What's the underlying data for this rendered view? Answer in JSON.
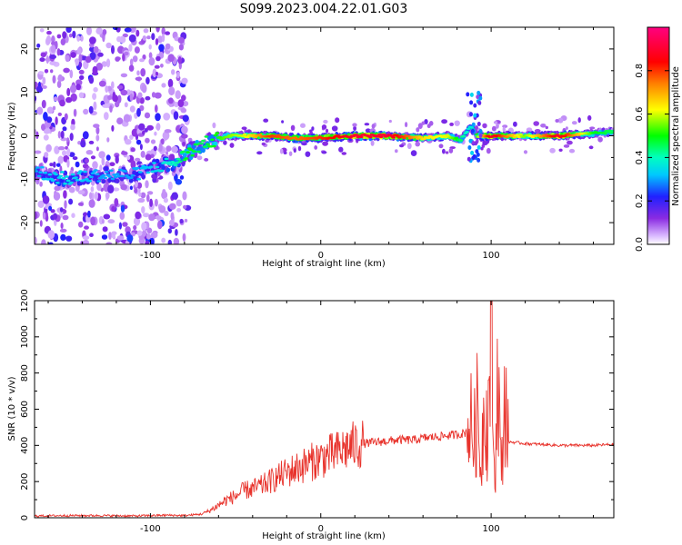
{
  "title": "S099.2023.004.22.01.G03",
  "chart_data": [
    {
      "type": "heatmap",
      "title": "S099.2023.004.22.01.G03",
      "xlabel": "Height of straight line (km)",
      "ylabel": "Frequency (Hz)",
      "xlim": [
        -168,
        172
      ],
      "ylim": [
        -25,
        25
      ],
      "xticks": [
        -100,
        0,
        100
      ],
      "yticks": [
        -20,
        -10,
        0,
        10,
        20
      ],
      "xtick_labels": [
        "-100",
        "0",
        "100"
      ],
      "ytick_labels": [
        "-20",
        "-10",
        "0",
        "10",
        "20"
      ],
      "colorbar": {
        "label": "Normalized spectral amplitude",
        "range": [
          0,
          1
        ],
        "ticks": [
          0.0,
          0.2,
          0.4,
          0.6,
          0.8
        ],
        "tick_labels": [
          "0.0",
          "0.2",
          "0.4",
          "0.6",
          "0.8"
        ],
        "colormap": "rainbow (white-purple-blue-cyan-green-yellow-red-magenta)"
      },
      "ridge": {
        "x": [
          -168,
          -150,
          -130,
          -110,
          -95,
          -85,
          -78,
          -70,
          -62,
          -55,
          -45,
          -30,
          -15,
          0,
          20,
          40,
          60,
          75,
          82,
          88,
          92,
          100,
          120,
          140,
          160,
          172
        ],
        "freq": [
          -8,
          -10,
          -9,
          -9,
          -7,
          -6,
          -4,
          -2,
          -1,
          0,
          0,
          0,
          -0.5,
          -0.5,
          0,
          0,
          -0.5,
          0,
          -1,
          2,
          0,
          0,
          0,
          0,
          0.5,
          1
        ],
        "amplitude": [
          0.3,
          0.35,
          0.3,
          0.3,
          0.35,
          0.4,
          0.5,
          0.45,
          0.5,
          0.55,
          0.6,
          0.8,
          0.75,
          0.8,
          0.9,
          0.9,
          0.65,
          0.6,
          0.45,
          0.35,
          0.55,
          0.9,
          0.55,
          0.9,
          0.5,
          0.45
        ]
      },
      "noise_region_x": [
        -168,
        -78
      ]
    },
    {
      "type": "line",
      "xlabel": "Height of straight line (km)",
      "ylabel": "SNR (10 * v/v)",
      "xlim": [
        -168,
        172
      ],
      "ylim": [
        0,
        1200
      ],
      "xticks": [
        -100,
        0,
        100
      ],
      "yticks": [
        0,
        200,
        400,
        600,
        800,
        1000,
        1200
      ],
      "xtick_labels": [
        "-100",
        "0",
        "100"
      ],
      "ytick_labels": [
        "0",
        "200",
        "400",
        "600",
        "800",
        "1000",
        "1200"
      ],
      "series": [
        {
          "color": "#e8322b",
          "x": [
            -168,
            -150,
            -130,
            -110,
            -90,
            -80,
            -70,
            -65,
            -60,
            -55,
            -50,
            -45,
            -40,
            -35,
            -30,
            -25,
            -20,
            -15,
            -10,
            -5,
            0,
            5,
            10,
            15,
            20,
            25,
            30,
            35,
            40,
            45,
            50,
            55,
            60,
            65,
            70,
            75,
            80,
            85,
            88,
            90,
            92,
            94,
            96,
            98,
            100,
            102,
            104,
            106,
            108,
            110,
            120,
            130,
            140,
            150,
            160,
            172
          ],
          "values": [
            10,
            12,
            12,
            10,
            14,
            12,
            20,
            40,
            70,
            100,
            120,
            150,
            160,
            175,
            200,
            225,
            250,
            270,
            290,
            310,
            330,
            345,
            360,
            385,
            400,
            410,
            415,
            420,
            425,
            430,
            430,
            430,
            440,
            445,
            450,
            455,
            460,
            470,
            520,
            430,
            600,
            250,
            700,
            450,
            1200,
            150,
            850,
            200,
            700,
            420,
            410,
            405,
            400,
            400,
            400,
            405
          ]
        }
      ]
    }
  ]
}
